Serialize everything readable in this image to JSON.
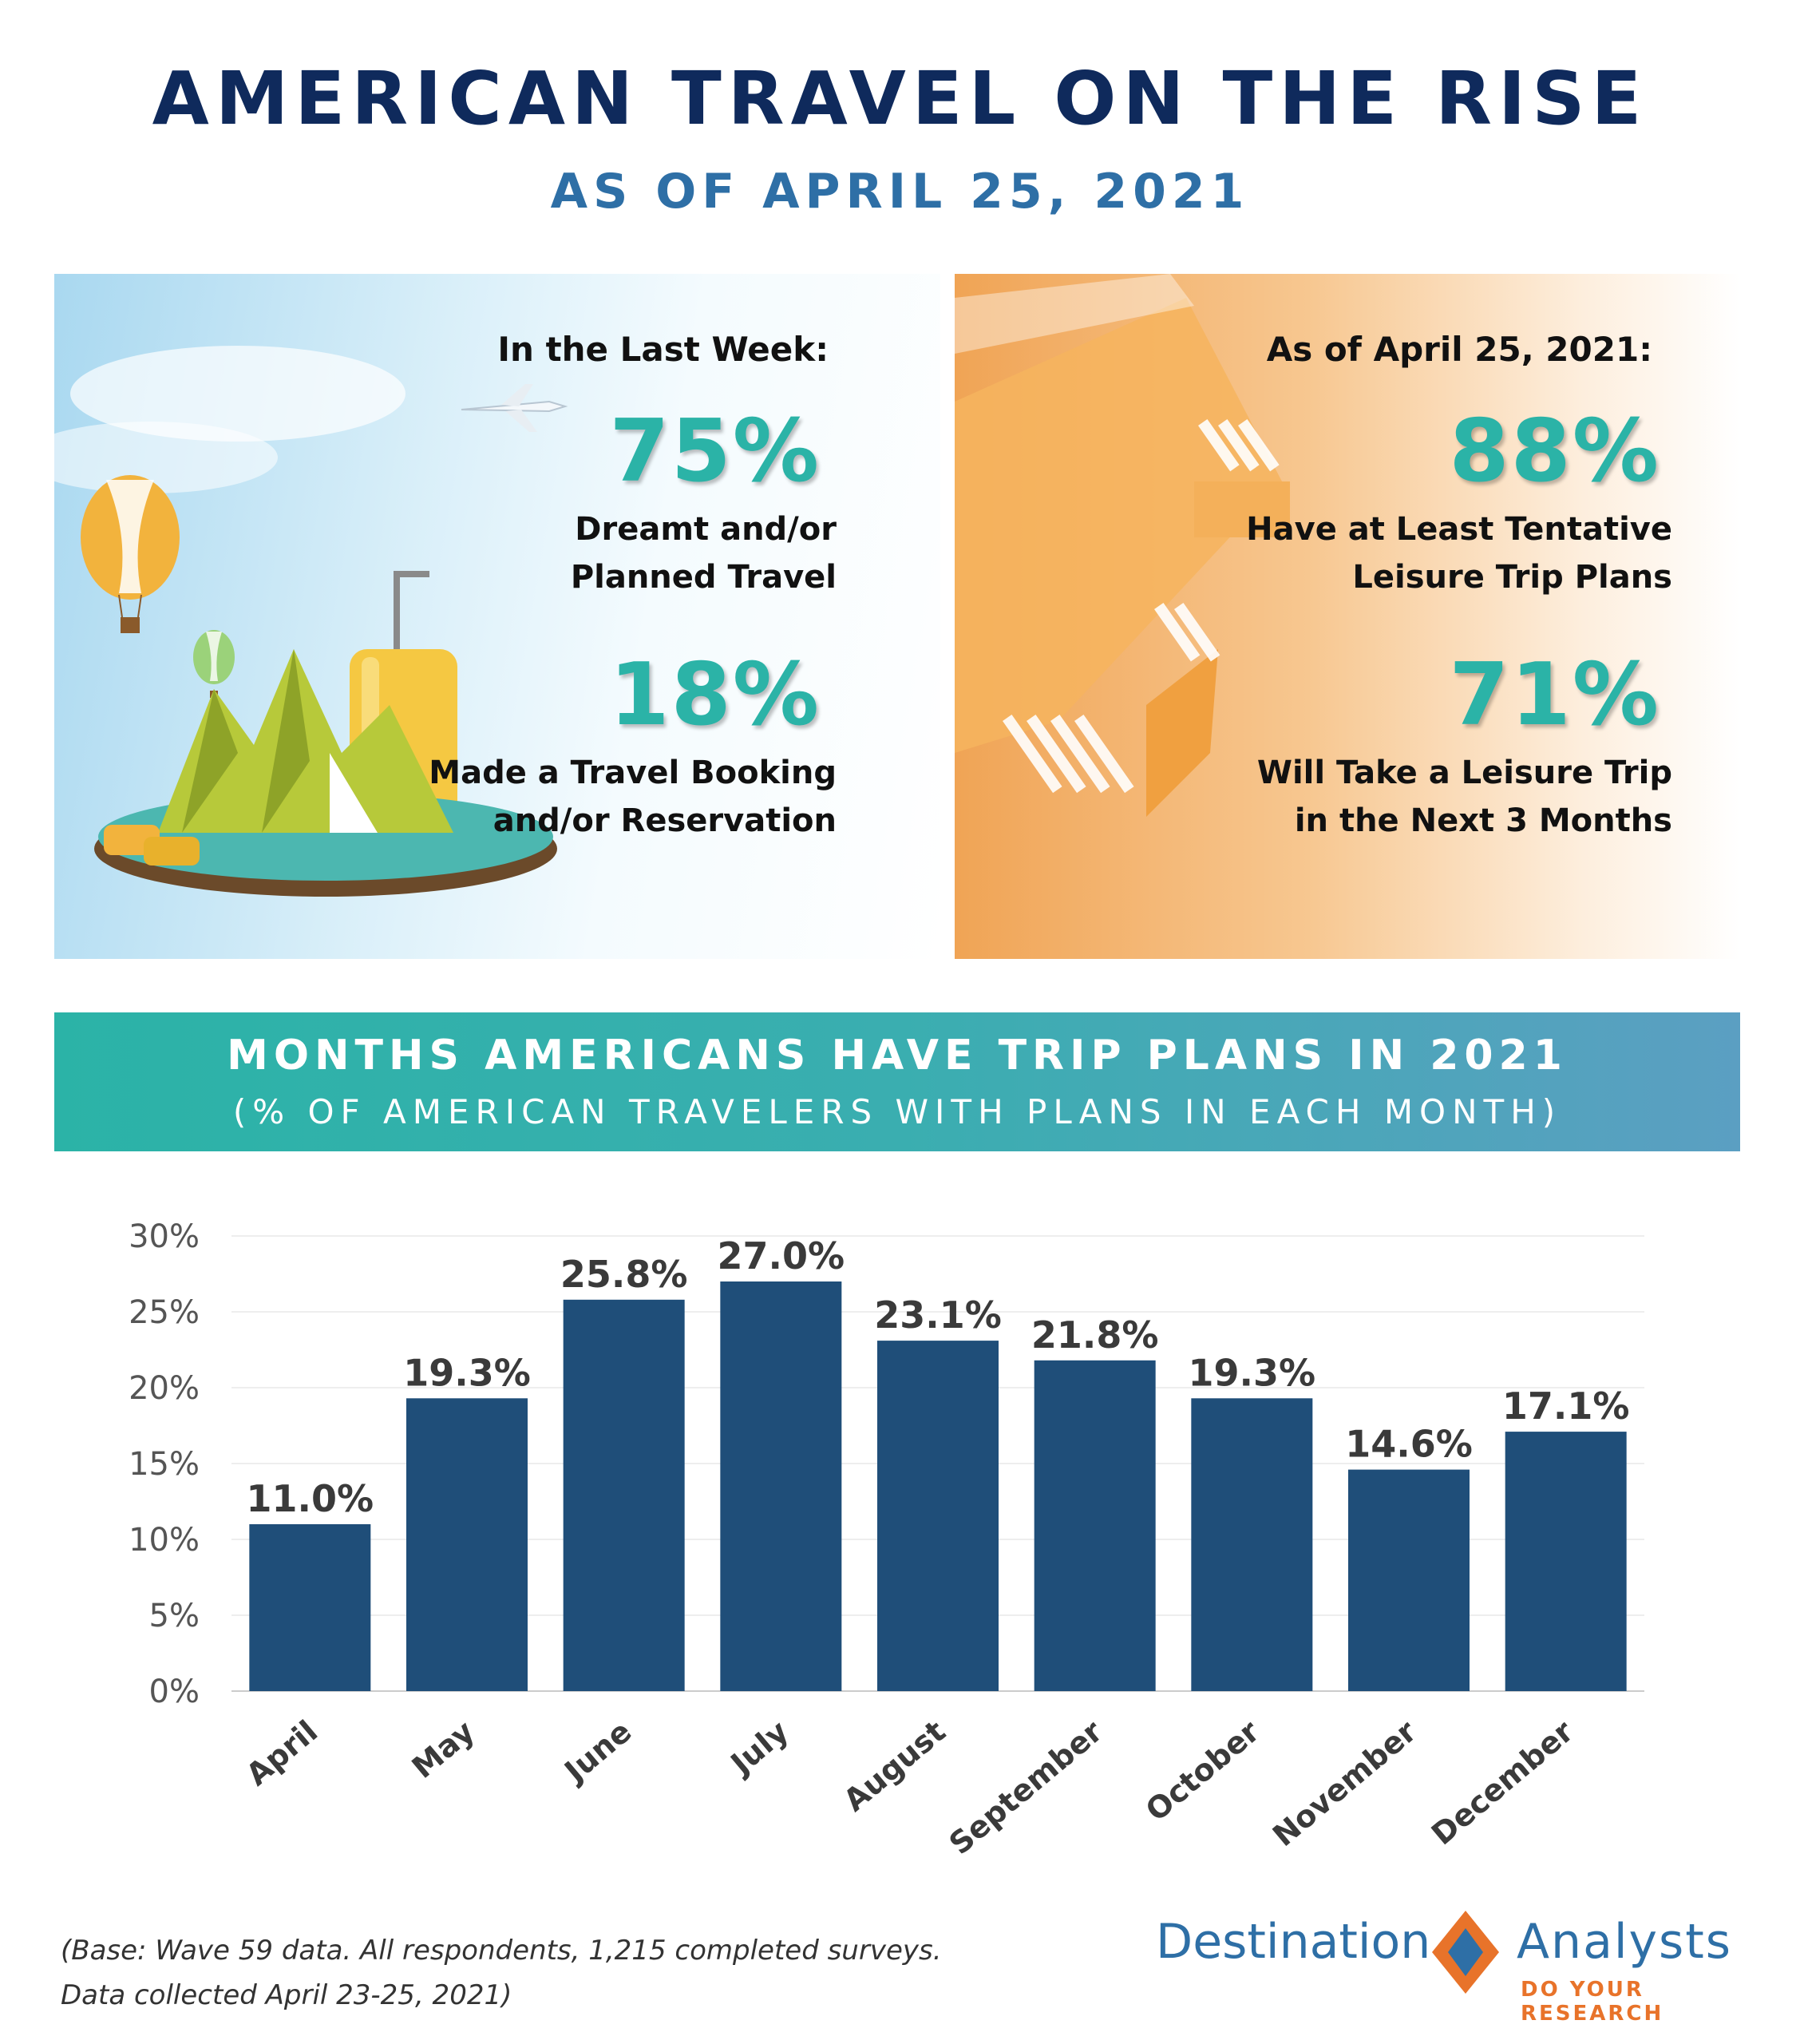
{
  "header": {
    "title": "AMERICAN TRAVEL ON THE RISE",
    "subtitle": "AS OF APRIL 25, 2021"
  },
  "left_panel": {
    "heading": "In the Last Week:",
    "stat1_value": "75%",
    "stat1_label": "Dreamt and/or\nPlanned Travel",
    "stat2_value": "18%",
    "stat2_label": "Made a Travel Booking\nand/or Reservation"
  },
  "right_panel": {
    "heading": "As of  April 25, 2021:",
    "stat1_value": "88%",
    "stat1_label": "Have at Least Tentative\nLeisure Trip Plans",
    "stat2_value": "71%",
    "stat2_label": "Will Take a Leisure Trip\nin the Next 3 Months"
  },
  "banner": {
    "title": "MONTHS AMERICANS HAVE TRIP PLANS IN 2021",
    "subtitle": "(% OF AMERICAN TRAVELERS WITH PLANS IN EACH MONTH)"
  },
  "chart_data": {
    "type": "bar",
    "categories": [
      "April",
      "May",
      "June",
      "July",
      "August",
      "September",
      "October",
      "November",
      "December"
    ],
    "values": [
      11.0,
      19.3,
      25.8,
      27.0,
      23.1,
      21.8,
      19.3,
      14.6,
      17.1
    ],
    "value_labels": [
      "11.0%",
      "19.3%",
      "25.8%",
      "27.0%",
      "23.1%",
      "21.8%",
      "19.3%",
      "14.6%",
      "17.1%"
    ],
    "yticks": [
      0,
      5,
      10,
      15,
      20,
      25,
      30
    ],
    "ytick_labels": [
      "0%",
      "5%",
      "10%",
      "15%",
      "20%",
      "25%",
      "30%"
    ],
    "ylim": [
      0,
      30
    ],
    "grid": true,
    "bar_color": "#1f4e79",
    "xlabel": "",
    "ylabel": ""
  },
  "footer": {
    "note": "(Base: Wave 59 data. All respondents, 1,215 completed surveys.\nData collected April 23-25, 2021)",
    "logo_left": "Destination",
    "logo_right": "Analysts",
    "logo_tagline": "DO YOUR RESEARCH"
  },
  "colors": {
    "title": "#0f2a5c",
    "subtitle": "#2e6fa6",
    "stat_number": "#2bb3a7",
    "banner_start": "#2bb3a7",
    "banner_end": "#5b9fc2",
    "logo_orange": "#e8732a"
  }
}
